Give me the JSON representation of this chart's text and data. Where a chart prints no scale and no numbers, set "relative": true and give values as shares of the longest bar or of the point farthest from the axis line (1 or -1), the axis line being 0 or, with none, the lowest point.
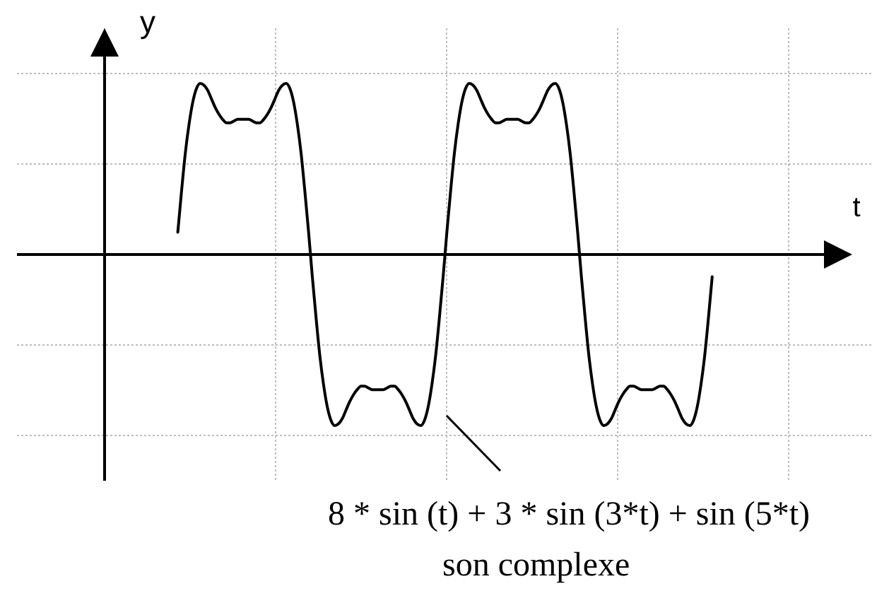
{
  "chart_data": {
    "type": "line",
    "relative": true,
    "xlabel": "t",
    "ylabel": "y",
    "grid": true,
    "line_style": "solid",
    "categories": [
      null,
      null,
      null,
      null,
      null,
      null,
      null,
      null,
      null,
      null,
      null,
      null,
      null,
      null,
      null,
      null,
      null,
      null,
      null,
      null,
      null,
      null,
      null,
      null,
      null,
      null,
      null,
      null,
      null,
      null,
      null,
      null,
      null,
      null,
      null,
      null,
      null,
      null,
      null,
      null,
      null,
      null,
      null,
      null,
      null,
      null,
      null,
      null,
      null,
      null,
      null,
      null,
      null,
      null,
      null,
      null,
      null,
      null,
      null,
      null,
      null,
      null,
      null,
      null,
      null,
      null,
      null,
      null,
      null,
      null,
      null,
      null,
      null,
      null,
      null,
      null,
      null,
      null,
      null,
      null,
      null,
      null,
      null,
      null,
      null,
      null,
      null,
      null,
      null,
      null,
      null,
      null,
      null,
      null,
      null,
      null,
      null,
      null,
      null,
      null,
      null,
      null,
      null,
      null,
      null,
      null,
      null,
      null,
      null,
      null,
      null,
      null,
      null,
      null,
      null,
      null,
      null,
      null,
      null,
      null,
      null,
      null,
      null,
      null,
      null,
      null,
      null,
      null,
      null,
      null,
      null,
      null,
      null,
      null,
      null,
      null,
      null,
      null,
      null,
      null,
      null,
      null,
      null,
      null
    ],
    "series": [
      {
        "name": "8 * sin (t) + 3 * sin (3*t) + sin (5*t)",
        "color": "#000000",
        "values": [
          0.13,
          0.37,
          0.59,
          0.76,
          0.89,
          0.97,
          1,
          0.99,
          0.96,
          0.91,
          0.86,
          0.82,
          0.79,
          0.77,
          0.77,
          0.78,
          0.79,
          0.79,
          0.79,
          0.79,
          0.78,
          0.77,
          0.77,
          0.79,
          0.82,
          0.86,
          0.91,
          0.96,
          0.99,
          1,
          0.97,
          0.89,
          0.76,
          0.59,
          0.37,
          0.13,
          -0.13,
          -0.37,
          -0.59,
          -0.76,
          -0.89,
          -0.97,
          -1,
          -0.99,
          -0.96,
          -0.91,
          -0.86,
          -0.82,
          -0.79,
          -0.77,
          -0.77,
          -0.78,
          -0.79,
          -0.79,
          -0.79,
          -0.79,
          -0.78,
          -0.77,
          -0.77,
          -0.79,
          -0.82,
          -0.86,
          -0.91,
          -0.96,
          -0.99,
          -1,
          -0.97,
          -0.89,
          -0.76,
          -0.59,
          -0.37,
          -0.13,
          0.13,
          0.37,
          0.59,
          0.76,
          0.89,
          0.97,
          1,
          0.99,
          0.96,
          0.91,
          0.86,
          0.82,
          0.79,
          0.77,
          0.77,
          0.78,
          0.79,
          0.79,
          0.79,
          0.79,
          0.78,
          0.77,
          0.77,
          0.79,
          0.82,
          0.86,
          0.91,
          0.96,
          0.99,
          1,
          0.97,
          0.89,
          0.76,
          0.59,
          0.37,
          0.13,
          -0.13,
          -0.37,
          -0.59,
          -0.76,
          -0.89,
          -0.97,
          -1,
          -0.99,
          -0.96,
          -0.91,
          -0.86,
          -0.82,
          -0.79,
          -0.77,
          -0.77,
          -0.78,
          -0.79,
          -0.79,
          -0.79,
          -0.79,
          -0.78,
          -0.77,
          -0.77,
          -0.79,
          -0.82,
          -0.86,
          -0.91,
          -0.96,
          -0.99,
          -1,
          -0.97,
          -0.89,
          -0.76,
          -0.59,
          -0.37,
          -0.13
        ]
      }
    ],
    "annotations": [
      "son complexe"
    ]
  }
}
